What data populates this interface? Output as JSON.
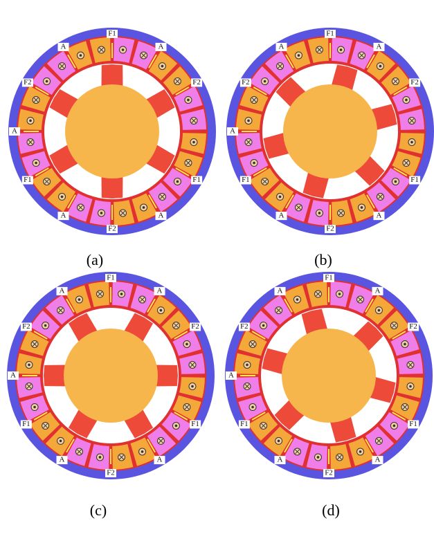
{
  "panels": [
    {
      "caption": "(a)",
      "labels": [
        "F1",
        "A",
        "F2",
        "F1",
        "A",
        "F2",
        "A",
        "F1",
        "A",
        "F2",
        "A"
      ]
    },
    {
      "caption": "(b)",
      "labels": [
        "F1",
        "A",
        "F2",
        "F1",
        "A",
        "F2",
        "A",
        "F1",
        "A",
        "F2",
        "A"
      ]
    },
    {
      "caption": "(c)",
      "labels": [
        "F1",
        "A",
        "F2",
        "F1",
        "A",
        "F2",
        "A",
        "F1",
        "A",
        "F2",
        "A"
      ]
    },
    {
      "caption": "(d)",
      "labels": [
        "F1",
        "A",
        "F2",
        "F1",
        "A",
        "F2",
        "A",
        "F1",
        "A",
        "F2",
        "A"
      ]
    }
  ]
}
